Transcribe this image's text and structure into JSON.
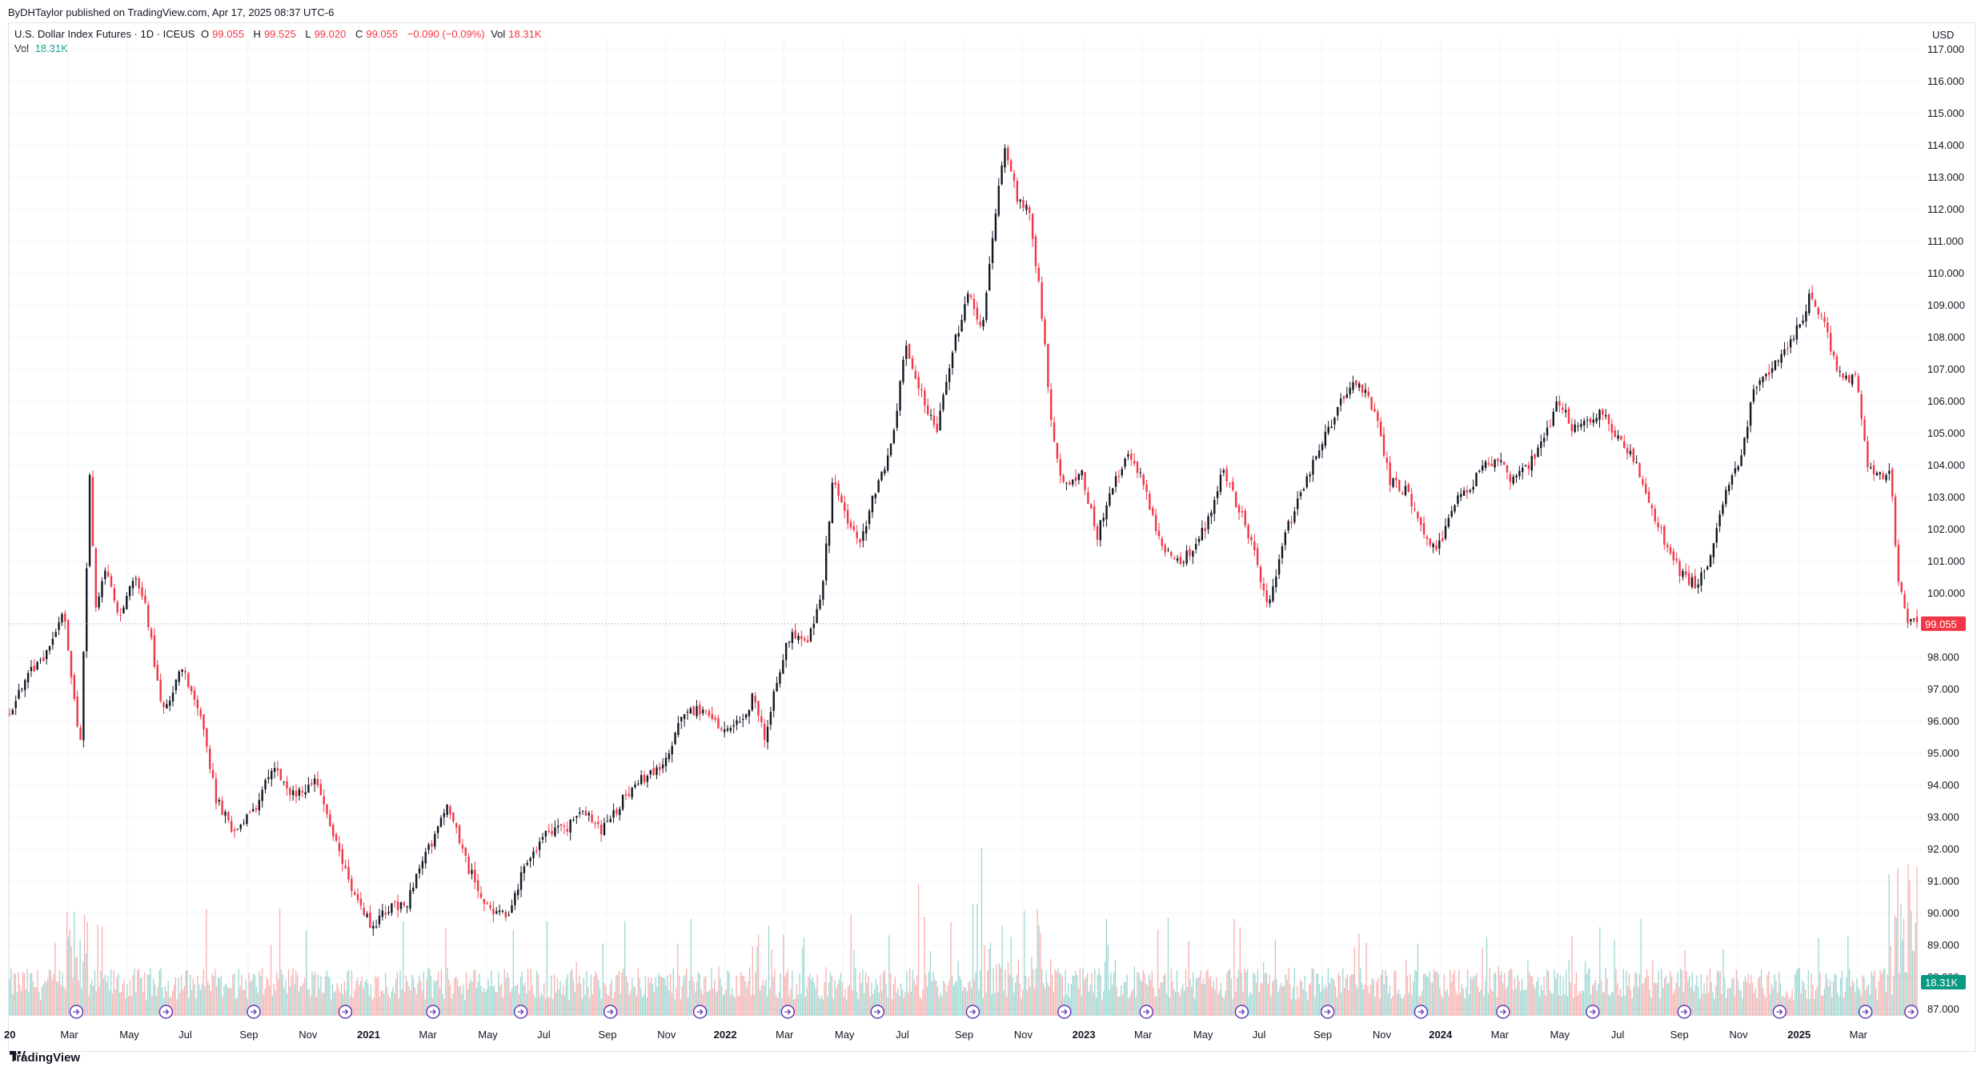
{
  "header": {
    "publisher": "ByDHTaylor published on TradingView.com, Apr 17, 2025 08:37 UTC-6"
  },
  "legend": {
    "symbol": "U.S. Dollar Index Futures · 1D · ICEUS",
    "o_label": "O",
    "o_value": "99.055",
    "h_label": "H",
    "h_value": "99.525",
    "l_label": "L",
    "l_value": "99.020",
    "c_label": "C",
    "c_value": "99.055",
    "change": "−0.090 (−0.09%)",
    "vol_label": "Vol",
    "vol_value": "18.31K",
    "vol_row_label": "Vol",
    "vol_row_value": "18.31K"
  },
  "currency": "USD",
  "footer": {
    "logo_text": "TradingView"
  },
  "colors": {
    "up": "#131722",
    "down": "#f23645",
    "vol_up": "#26a69a",
    "vol_down": "#ef5350",
    "price_tag": "#f23645",
    "vol_tag": "#089981"
  },
  "chart_data": {
    "type": "candlestick",
    "title": "U.S. Dollar Index Futures · 1D · ICEUS",
    "ylabel": "USD",
    "ylim": [
      86.5,
      117.5
    ],
    "y_ticks": [
      87,
      88,
      89,
      90,
      91,
      92,
      93,
      94,
      95,
      96,
      97,
      98,
      99,
      100,
      101,
      102,
      103,
      104,
      105,
      106,
      107,
      108,
      109,
      110,
      111,
      112,
      113,
      114,
      115,
      116,
      117
    ],
    "y_tick_labels": [
      "87.000",
      "88.000",
      "89.000",
      "90.000",
      "91.000",
      "92.000",
      "93.000",
      "94.000",
      "95.000",
      "96.000",
      "97.000",
      "98.000",
      "99.000",
      "100.000",
      "101.000",
      "102.000",
      "103.000",
      "104.000",
      "105.000",
      "106.000",
      "107.000",
      "108.000",
      "109.000",
      "110.000",
      "111.000",
      "112.000",
      "113.000",
      "114.000",
      "115.000",
      "116.000",
      "117.000"
    ],
    "x_labels": [
      {
        "label": "20",
        "t": 0.0,
        "bold": true
      },
      {
        "label": "Mar",
        "t": 0.031
      },
      {
        "label": "May",
        "t": 0.062
      },
      {
        "label": "Jul",
        "t": 0.093
      },
      {
        "label": "Sep",
        "t": 0.125
      },
      {
        "label": "Nov",
        "t": 0.156
      },
      {
        "label": "2021",
        "t": 0.188,
        "bold": true
      },
      {
        "label": "Mar",
        "t": 0.219
      },
      {
        "label": "May",
        "t": 0.25
      },
      {
        "label": "Jul",
        "t": 0.281
      },
      {
        "label": "Sep",
        "t": 0.313
      },
      {
        "label": "Nov",
        "t": 0.344
      },
      {
        "label": "2022",
        "t": 0.375,
        "bold": true
      },
      {
        "label": "Mar",
        "t": 0.406
      },
      {
        "label": "May",
        "t": 0.437
      },
      {
        "label": "Jul",
        "t": 0.469
      },
      {
        "label": "Sep",
        "t": 0.5
      },
      {
        "label": "Nov",
        "t": 0.531
      },
      {
        "label": "2023",
        "t": 0.563,
        "bold": true
      },
      {
        "label": "Mar",
        "t": 0.594
      },
      {
        "label": "May",
        "t": 0.625
      },
      {
        "label": "Jul",
        "t": 0.656
      },
      {
        "label": "Sep",
        "t": 0.688
      },
      {
        "label": "Nov",
        "t": 0.719
      },
      {
        "label": "2024",
        "t": 0.75,
        "bold": true
      },
      {
        "label": "Mar",
        "t": 0.781
      },
      {
        "label": "May",
        "t": 0.812
      },
      {
        "label": "Jul",
        "t": 0.844
      },
      {
        "label": "Sep",
        "t": 0.875
      },
      {
        "label": "Nov",
        "t": 0.906
      },
      {
        "label": "2025",
        "t": 0.938,
        "bold": true
      },
      {
        "label": "Mar",
        "t": 0.969
      }
    ],
    "path_points": [
      [
        0.0,
        96.2
      ],
      [
        0.01,
        97.5
      ],
      [
        0.02,
        98.2
      ],
      [
        0.028,
        99.6
      ],
      [
        0.034,
        96.5
      ],
      [
        0.037,
        95.2
      ],
      [
        0.042,
        103.7
      ],
      [
        0.045,
        99.5
      ],
      [
        0.05,
        100.8
      ],
      [
        0.058,
        99.3
      ],
      [
        0.066,
        100.6
      ],
      [
        0.072,
        99.4
      ],
      [
        0.08,
        96.2
      ],
      [
        0.09,
        97.7
      ],
      [
        0.1,
        96.3
      ],
      [
        0.108,
        93.6
      ],
      [
        0.118,
        92.5
      ],
      [
        0.13,
        93.4
      ],
      [
        0.138,
        94.6
      ],
      [
        0.148,
        93.7
      ],
      [
        0.16,
        94.1
      ],
      [
        0.17,
        92.5
      ],
      [
        0.18,
        90.6
      ],
      [
        0.19,
        89.6
      ],
      [
        0.198,
        90.2
      ],
      [
        0.208,
        90.3
      ],
      [
        0.22,
        92.1
      ],
      [
        0.23,
        93.3
      ],
      [
        0.24,
        91.5
      ],
      [
        0.25,
        90.2
      ],
      [
        0.262,
        90.0
      ],
      [
        0.27,
        91.6
      ],
      [
        0.28,
        92.4
      ],
      [
        0.292,
        92.7
      ],
      [
        0.302,
        93.2
      ],
      [
        0.31,
        92.6
      ],
      [
        0.322,
        93.6
      ],
      [
        0.332,
        94.2
      ],
      [
        0.342,
        94.6
      ],
      [
        0.352,
        96.1
      ],
      [
        0.36,
        96.4
      ],
      [
        0.368,
        96.1
      ],
      [
        0.376,
        95.7
      ],
      [
        0.385,
        96.1
      ],
      [
        0.39,
        96.8
      ],
      [
        0.396,
        95.5
      ],
      [
        0.404,
        97.7
      ],
      [
        0.41,
        98.9
      ],
      [
        0.418,
        98.3
      ],
      [
        0.426,
        100.2
      ],
      [
        0.432,
        103.7
      ],
      [
        0.438,
        102.4
      ],
      [
        0.446,
        101.5
      ],
      [
        0.455,
        103.5
      ],
      [
        0.462,
        104.5
      ],
      [
        0.47,
        107.8
      ],
      [
        0.478,
        106.2
      ],
      [
        0.486,
        105.1
      ],
      [
        0.495,
        107.8
      ],
      [
        0.503,
        109.4
      ],
      [
        0.51,
        108.2
      ],
      [
        0.516,
        111.6
      ],
      [
        0.522,
        113.9
      ],
      [
        0.528,
        112.4
      ],
      [
        0.534,
        112.1
      ],
      [
        0.54,
        109.5
      ],
      [
        0.546,
        105.5
      ],
      [
        0.552,
        103.3
      ],
      [
        0.562,
        103.8
      ],
      [
        0.57,
        101.8
      ],
      [
        0.578,
        103.2
      ],
      [
        0.586,
        104.4
      ],
      [
        0.594,
        103.6
      ],
      [
        0.602,
        101.7
      ],
      [
        0.612,
        101.0
      ],
      [
        0.62,
        101.3
      ],
      [
        0.628,
        102.2
      ],
      [
        0.636,
        103.8
      ],
      [
        0.644,
        102.7
      ],
      [
        0.652,
        101.5
      ],
      [
        0.66,
        99.5
      ],
      [
        0.668,
        101.8
      ],
      [
        0.676,
        102.9
      ],
      [
        0.684,
        104.2
      ],
      [
        0.692,
        105.2
      ],
      [
        0.7,
        106.3
      ],
      [
        0.708,
        106.6
      ],
      [
        0.716,
        105.6
      ],
      [
        0.724,
        103.5
      ],
      [
        0.732,
        103.2
      ],
      [
        0.74,
        102.2
      ],
      [
        0.748,
        101.2
      ],
      [
        0.756,
        102.7
      ],
      [
        0.764,
        103.2
      ],
      [
        0.772,
        103.9
      ],
      [
        0.78,
        104.2
      ],
      [
        0.788,
        103.5
      ],
      [
        0.796,
        103.9
      ],
      [
        0.804,
        104.8
      ],
      [
        0.812,
        106.0
      ],
      [
        0.82,
        105.1
      ],
      [
        0.828,
        105.3
      ],
      [
        0.836,
        105.7
      ],
      [
        0.844,
        104.7
      ],
      [
        0.852,
        104.2
      ],
      [
        0.86,
        102.8
      ],
      [
        0.868,
        101.6
      ],
      [
        0.876,
        100.6
      ],
      [
        0.884,
        100.3
      ],
      [
        0.892,
        101.1
      ],
      [
        0.9,
        103.2
      ],
      [
        0.908,
        104.2
      ],
      [
        0.914,
        106.3
      ],
      [
        0.922,
        106.9
      ],
      [
        0.93,
        107.6
      ],
      [
        0.938,
        108.3
      ],
      [
        0.944,
        109.3
      ],
      [
        0.95,
        108.7
      ],
      [
        0.956,
        107.4
      ],
      [
        0.962,
        106.6
      ],
      [
        0.968,
        107.0
      ],
      [
        0.974,
        104.1
      ],
      [
        0.98,
        103.6
      ],
      [
        0.986,
        103.8
      ],
      [
        0.99,
        100.6
      ],
      [
        0.995,
        99.2
      ],
      [
        1.0,
        99.05
      ]
    ],
    "last_price": 99.055,
    "last_price_label": "99.055",
    "volume_last_label": "18.31K"
  }
}
